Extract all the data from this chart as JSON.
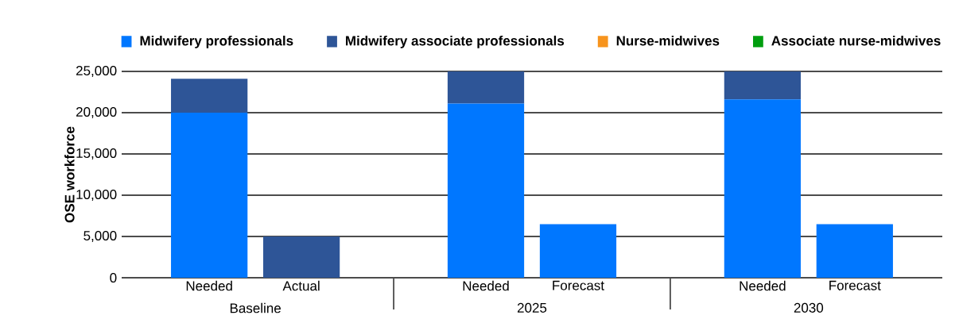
{
  "chart_data": {
    "type": "bar",
    "stacked": true,
    "ylabel": "OSE workforce",
    "categories": [
      "Needed",
      "Actual",
      null,
      "Needed",
      "Forecast",
      null,
      "Needed",
      "Forecast"
    ],
    "series": [
      {
        "name": "Midwifery professionals",
        "color": "#0077ff",
        "values": [
          20000,
          0,
          null,
          21100,
          6500,
          null,
          21600,
          6500
        ]
      },
      {
        "name": "Midwifery associate professionals",
        "color": "#2e5597",
        "values": [
          4100,
          5000,
          null,
          3900,
          0,
          null,
          3400,
          0
        ]
      },
      {
        "name": "Nurse-midwives",
        "color": "#f7941d",
        "values": [
          0,
          0,
          null,
          0,
          0,
          null,
          0,
          0
        ]
      },
      {
        "name": "Associate nurse-midwives",
        "color": "#009e0f",
        "values": [
          0,
          0,
          null,
          0,
          0,
          null,
          0,
          0
        ]
      }
    ],
    "annotations": [
      "Baseline",
      "2025",
      "2030"
    ],
    "ylim": [
      0,
      25000
    ],
    "yticks": [
      {
        "value": 0,
        "label": "0"
      },
      {
        "value": 5000,
        "label": "5,000"
      },
      {
        "value": 10000,
        "label": "10,000"
      },
      {
        "value": 15000,
        "label": "15,000"
      },
      {
        "value": 20000,
        "label": "20,000"
      },
      {
        "value": 25000,
        "label": "25,000"
      }
    ],
    "grid": "y",
    "legend": "top"
  }
}
